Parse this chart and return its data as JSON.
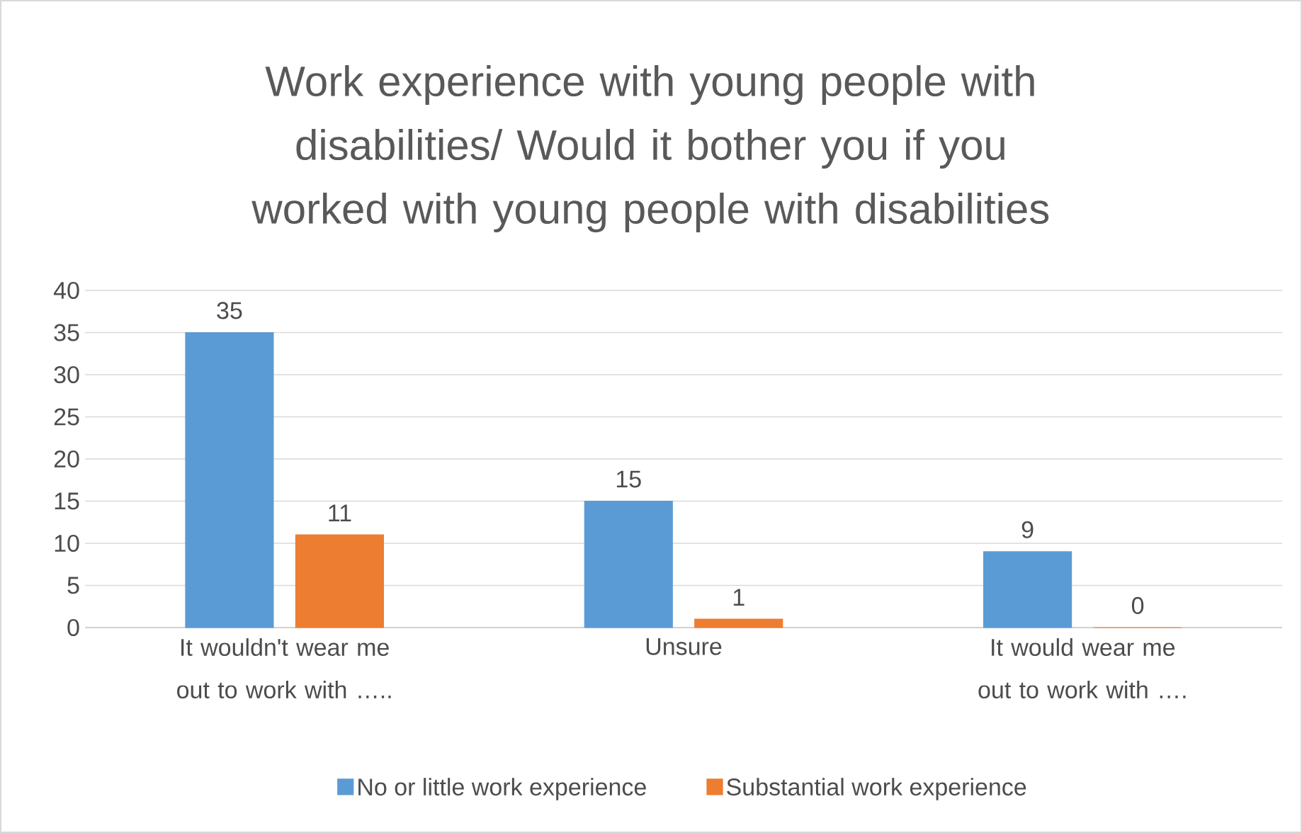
{
  "chart_data": {
    "type": "bar",
    "title": "Work experience with young people with disabilities/ Would it bother you if you worked with young people with disabilities",
    "categories": [
      "It wouldn't wear me out to work with …..",
      "Unsure",
      "It would wear me out to work with …."
    ],
    "series": [
      {
        "name": "No or little work experience",
        "color": "#5b9bd5",
        "values": [
          35,
          15,
          9
        ]
      },
      {
        "name": "Substantial work experience",
        "color": "#ed7d31",
        "values": [
          11,
          1,
          0
        ]
      }
    ],
    "ylim": [
      0,
      40
    ],
    "yticks": [
      0,
      5,
      10,
      15,
      20,
      25,
      30,
      35,
      40
    ],
    "grid": "y",
    "legend": "bottom",
    "data_labels": true
  }
}
